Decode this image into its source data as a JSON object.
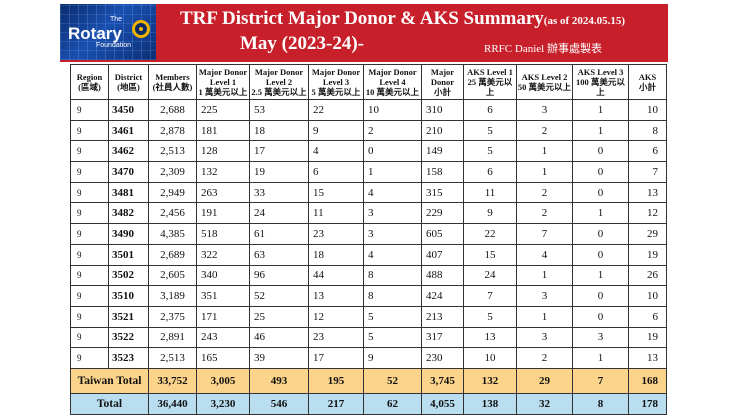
{
  "header": {
    "logo_the": "The",
    "logo_rotary": "Rotary",
    "logo_foundation": "Foundation",
    "title_main": "TRF District Major Donor & AKS Summary",
    "title_asof": "(as of 2024.05.15)",
    "subtitle": "May (2023-24)-",
    "credit": "RRFC Daniel 辦事處製表",
    "banner_color": "#c8202a"
  },
  "columns": [
    {
      "l1": "Region",
      "l2": "(區域)"
    },
    {
      "l1": "District",
      "l2": "(地區)"
    },
    {
      "l1": "Members",
      "l2": "(社員人數)"
    },
    {
      "l1": "Major Donor",
      "l2": "Level 1",
      "l3": "1 萬美元以上"
    },
    {
      "l1": "Major Donor",
      "l2": "Level 2",
      "l3": "2.5 萬美元以上"
    },
    {
      "l1": "Major Donor",
      "l2": "Level 3",
      "l3": "5 萬美元以上"
    },
    {
      "l1": "Major Donor",
      "l2": "Level 4",
      "l3": "10 萬美元以上"
    },
    {
      "l1": "Major",
      "l2": "Donor",
      "l3": "小計"
    },
    {
      "l1": "AKS Level 1",
      "l2": "25 萬美元以上"
    },
    {
      "l1": "AKS Level 2",
      "l2": "50 萬美元以上"
    },
    {
      "l1": "AKS Level 3",
      "l2": "100 萬美元以上"
    },
    {
      "l1": "AKS",
      "l2": "小計"
    }
  ],
  "rows": [
    {
      "region": "9",
      "district": "3450",
      "members": "2,688",
      "md1": "225",
      "md2": "53",
      "md3": "22",
      "md4": "10",
      "md_sub": "310",
      "aks1": "6",
      "aks2": "3",
      "aks3": "1",
      "aks_sub": "10"
    },
    {
      "region": "9",
      "district": "3461",
      "members": "2,878",
      "md1": "181",
      "md2": "18",
      "md3": "9",
      "md4": "2",
      "md_sub": "210",
      "aks1": "5",
      "aks2": "2",
      "aks3": "1",
      "aks_sub": "8"
    },
    {
      "region": "9",
      "district": "3462",
      "members": "2,513",
      "md1": "128",
      "md2": "17",
      "md3": "4",
      "md4": "0",
      "md_sub": "149",
      "aks1": "5",
      "aks2": "1",
      "aks3": "0",
      "aks_sub": "6"
    },
    {
      "region": "9",
      "district": "3470",
      "members": "2,309",
      "md1": "132",
      "md2": "19",
      "md3": "6",
      "md4": "1",
      "md_sub": "158",
      "aks1": "6",
      "aks2": "1",
      "aks3": "0",
      "aks_sub": "7"
    },
    {
      "region": "9",
      "district": "3481",
      "members": "2,949",
      "md1": "263",
      "md2": "33",
      "md3": "15",
      "md4": "4",
      "md_sub": "315",
      "aks1": "11",
      "aks2": "2",
      "aks3": "0",
      "aks_sub": "13"
    },
    {
      "region": "9",
      "district": "3482",
      "members": "2,456",
      "md1": "191",
      "md2": "24",
      "md3": "11",
      "md4": "3",
      "md_sub": "229",
      "aks1": "9",
      "aks2": "2",
      "aks3": "1",
      "aks_sub": "12"
    },
    {
      "region": "9",
      "district": "3490",
      "members": "4,385",
      "md1": "518",
      "md2": "61",
      "md3": "23",
      "md4": "3",
      "md_sub": "605",
      "aks1": "22",
      "aks2": "7",
      "aks3": "0",
      "aks_sub": "29"
    },
    {
      "region": "9",
      "district": "3501",
      "members": "2,689",
      "md1": "322",
      "md2": "63",
      "md3": "18",
      "md4": "4",
      "md_sub": "407",
      "aks1": "15",
      "aks2": "4",
      "aks3": "0",
      "aks_sub": "19"
    },
    {
      "region": "9",
      "district": "3502",
      "members": "2,605",
      "md1": "340",
      "md2": "96",
      "md3": "44",
      "md4": "8",
      "md_sub": "488",
      "aks1": "24",
      "aks2": "1",
      "aks3": "1",
      "aks_sub": "26"
    },
    {
      "region": "9",
      "district": "3510",
      "members": "3,189",
      "md1": "351",
      "md2": "52",
      "md3": "13",
      "md4": "8",
      "md_sub": "424",
      "aks1": "7",
      "aks2": "3",
      "aks3": "0",
      "aks_sub": "10"
    },
    {
      "region": "9",
      "district": "3521",
      "members": "2,375",
      "md1": "171",
      "md2": "25",
      "md3": "12",
      "md4": "5",
      "md_sub": "213",
      "aks1": "5",
      "aks2": "1",
      "aks3": "0",
      "aks_sub": "6"
    },
    {
      "region": "9",
      "district": "3522",
      "members": "2,891",
      "md1": "243",
      "md2": "46",
      "md3": "23",
      "md4": "5",
      "md_sub": "317",
      "aks1": "13",
      "aks2": "3",
      "aks3": "3",
      "aks_sub": "19"
    },
    {
      "region": "9",
      "district": "3523",
      "members": "2,513",
      "md1": "165",
      "md2": "39",
      "md3": "17",
      "md4": "9",
      "md_sub": "230",
      "aks1": "10",
      "aks2": "2",
      "aks3": "1",
      "aks_sub": "13"
    }
  ],
  "taiwan_total": {
    "label": "Taiwan Total",
    "members": "33,752",
    "md1": "3,005",
    "md2": "493",
    "md3": "195",
    "md4": "52",
    "md_sub": "3,745",
    "aks1": "132",
    "aks2": "29",
    "aks3": "7",
    "aks_sub": "168"
  },
  "grand_total": {
    "label": "Total",
    "members": "36,440",
    "md1": "3,230",
    "md2": "546",
    "md3": "217",
    "md4": "62",
    "md_sub": "4,055",
    "aks1": "138",
    "aks2": "32",
    "aks3": "8",
    "aks_sub": "178"
  },
  "colors": {
    "taiwan_row": "#fbd38a",
    "total_row": "#b8def0"
  }
}
